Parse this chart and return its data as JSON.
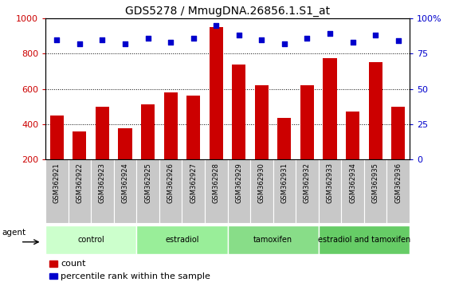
{
  "title": "GDS5278 / MmugDNA.26856.1.S1_at",
  "samples": [
    "GSM362921",
    "GSM362922",
    "GSM362923",
    "GSM362924",
    "GSM362925",
    "GSM362926",
    "GSM362927",
    "GSM362928",
    "GSM362929",
    "GSM362930",
    "GSM362931",
    "GSM362932",
    "GSM362933",
    "GSM362934",
    "GSM362935",
    "GSM362936"
  ],
  "counts": [
    450,
    360,
    500,
    375,
    510,
    580,
    560,
    950,
    740,
    620,
    435,
    620,
    775,
    470,
    750,
    500
  ],
  "percentiles": [
    85,
    82,
    85,
    82,
    86,
    83,
    86,
    95,
    88,
    85,
    82,
    86,
    89,
    83,
    88,
    84
  ],
  "bar_color": "#cc0000",
  "dot_color": "#0000cc",
  "left_ylim": [
    200,
    1000
  ],
  "right_ylim": [
    0,
    100
  ],
  "left_yticks": [
    200,
    400,
    600,
    800,
    1000
  ],
  "right_yticks": [
    0,
    25,
    50,
    75,
    100
  ],
  "right_yticklabels": [
    "0",
    "25",
    "50",
    "75",
    "100%"
  ],
  "groups": [
    {
      "label": "control",
      "start": 0,
      "end": 4,
      "color": "#ccffcc"
    },
    {
      "label": "estradiol",
      "start": 4,
      "end": 8,
      "color": "#99ee99"
    },
    {
      "label": "tamoxifen",
      "start": 8,
      "end": 12,
      "color": "#88dd88"
    },
    {
      "label": "estradiol and tamoxifen",
      "start": 12,
      "end": 16,
      "color": "#66cc66"
    }
  ],
  "grid_color": "black",
  "grid_style": "dotted",
  "title_fontsize": 10,
  "tick_fontsize": 6,
  "legend_count_label": "count",
  "legend_pct_label": "percentile rank within the sample",
  "bar_bottom": 200
}
